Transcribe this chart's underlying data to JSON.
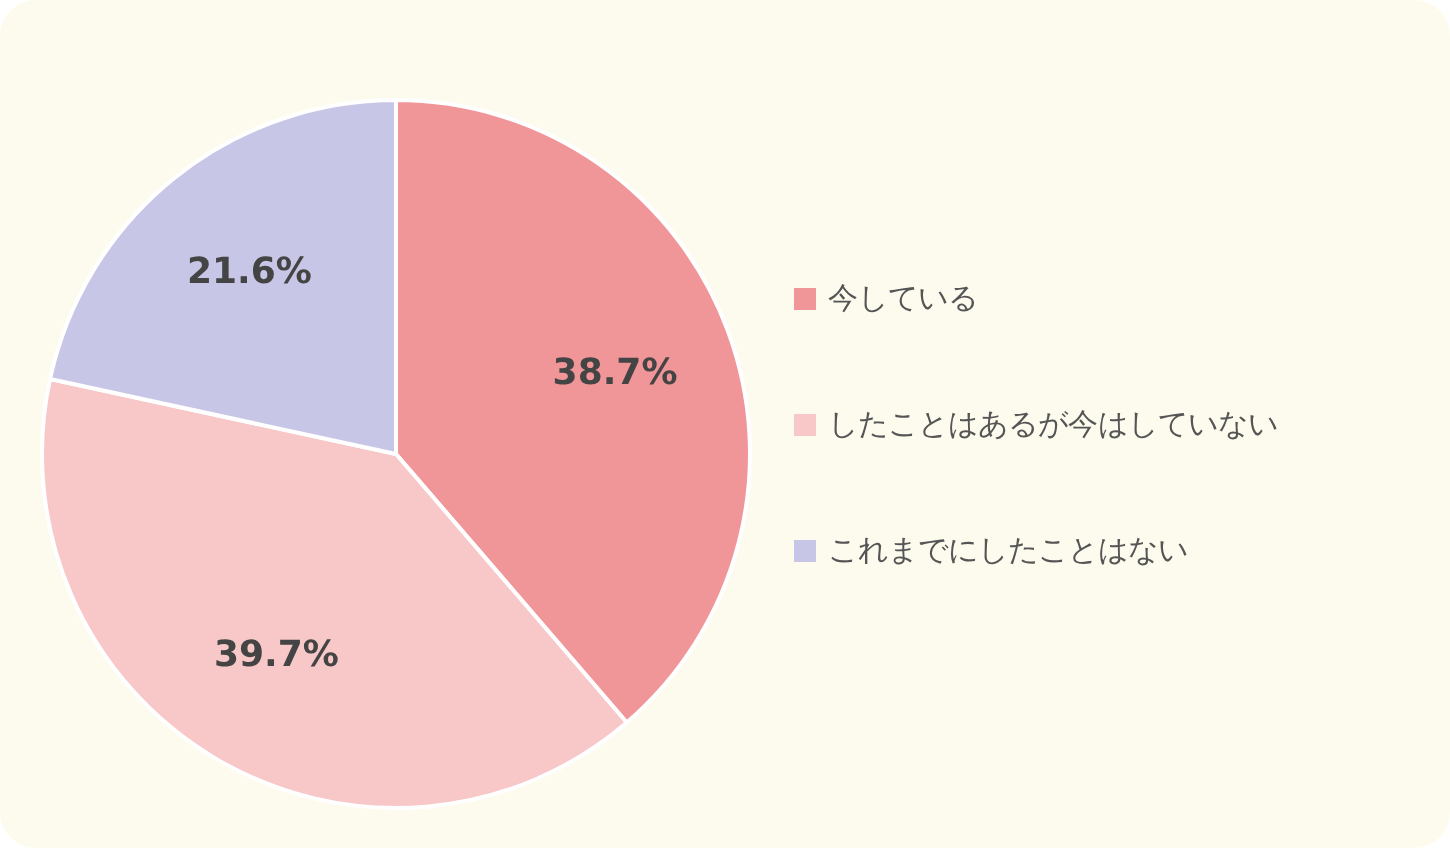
{
  "chart_data": {
    "type": "pie",
    "categories": [
      "今している",
      "したことはあるが今はしていない",
      "これまでにしたことはない"
    ],
    "values": [
      38.7,
      39.7,
      21.6
    ],
    "colors": [
      "#f19698",
      "#f8c8c9",
      "#c8c6e6"
    ],
    "value_labels": [
      "38.7%",
      "39.7%",
      "21.6%"
    ],
    "legend": "right"
  }
}
